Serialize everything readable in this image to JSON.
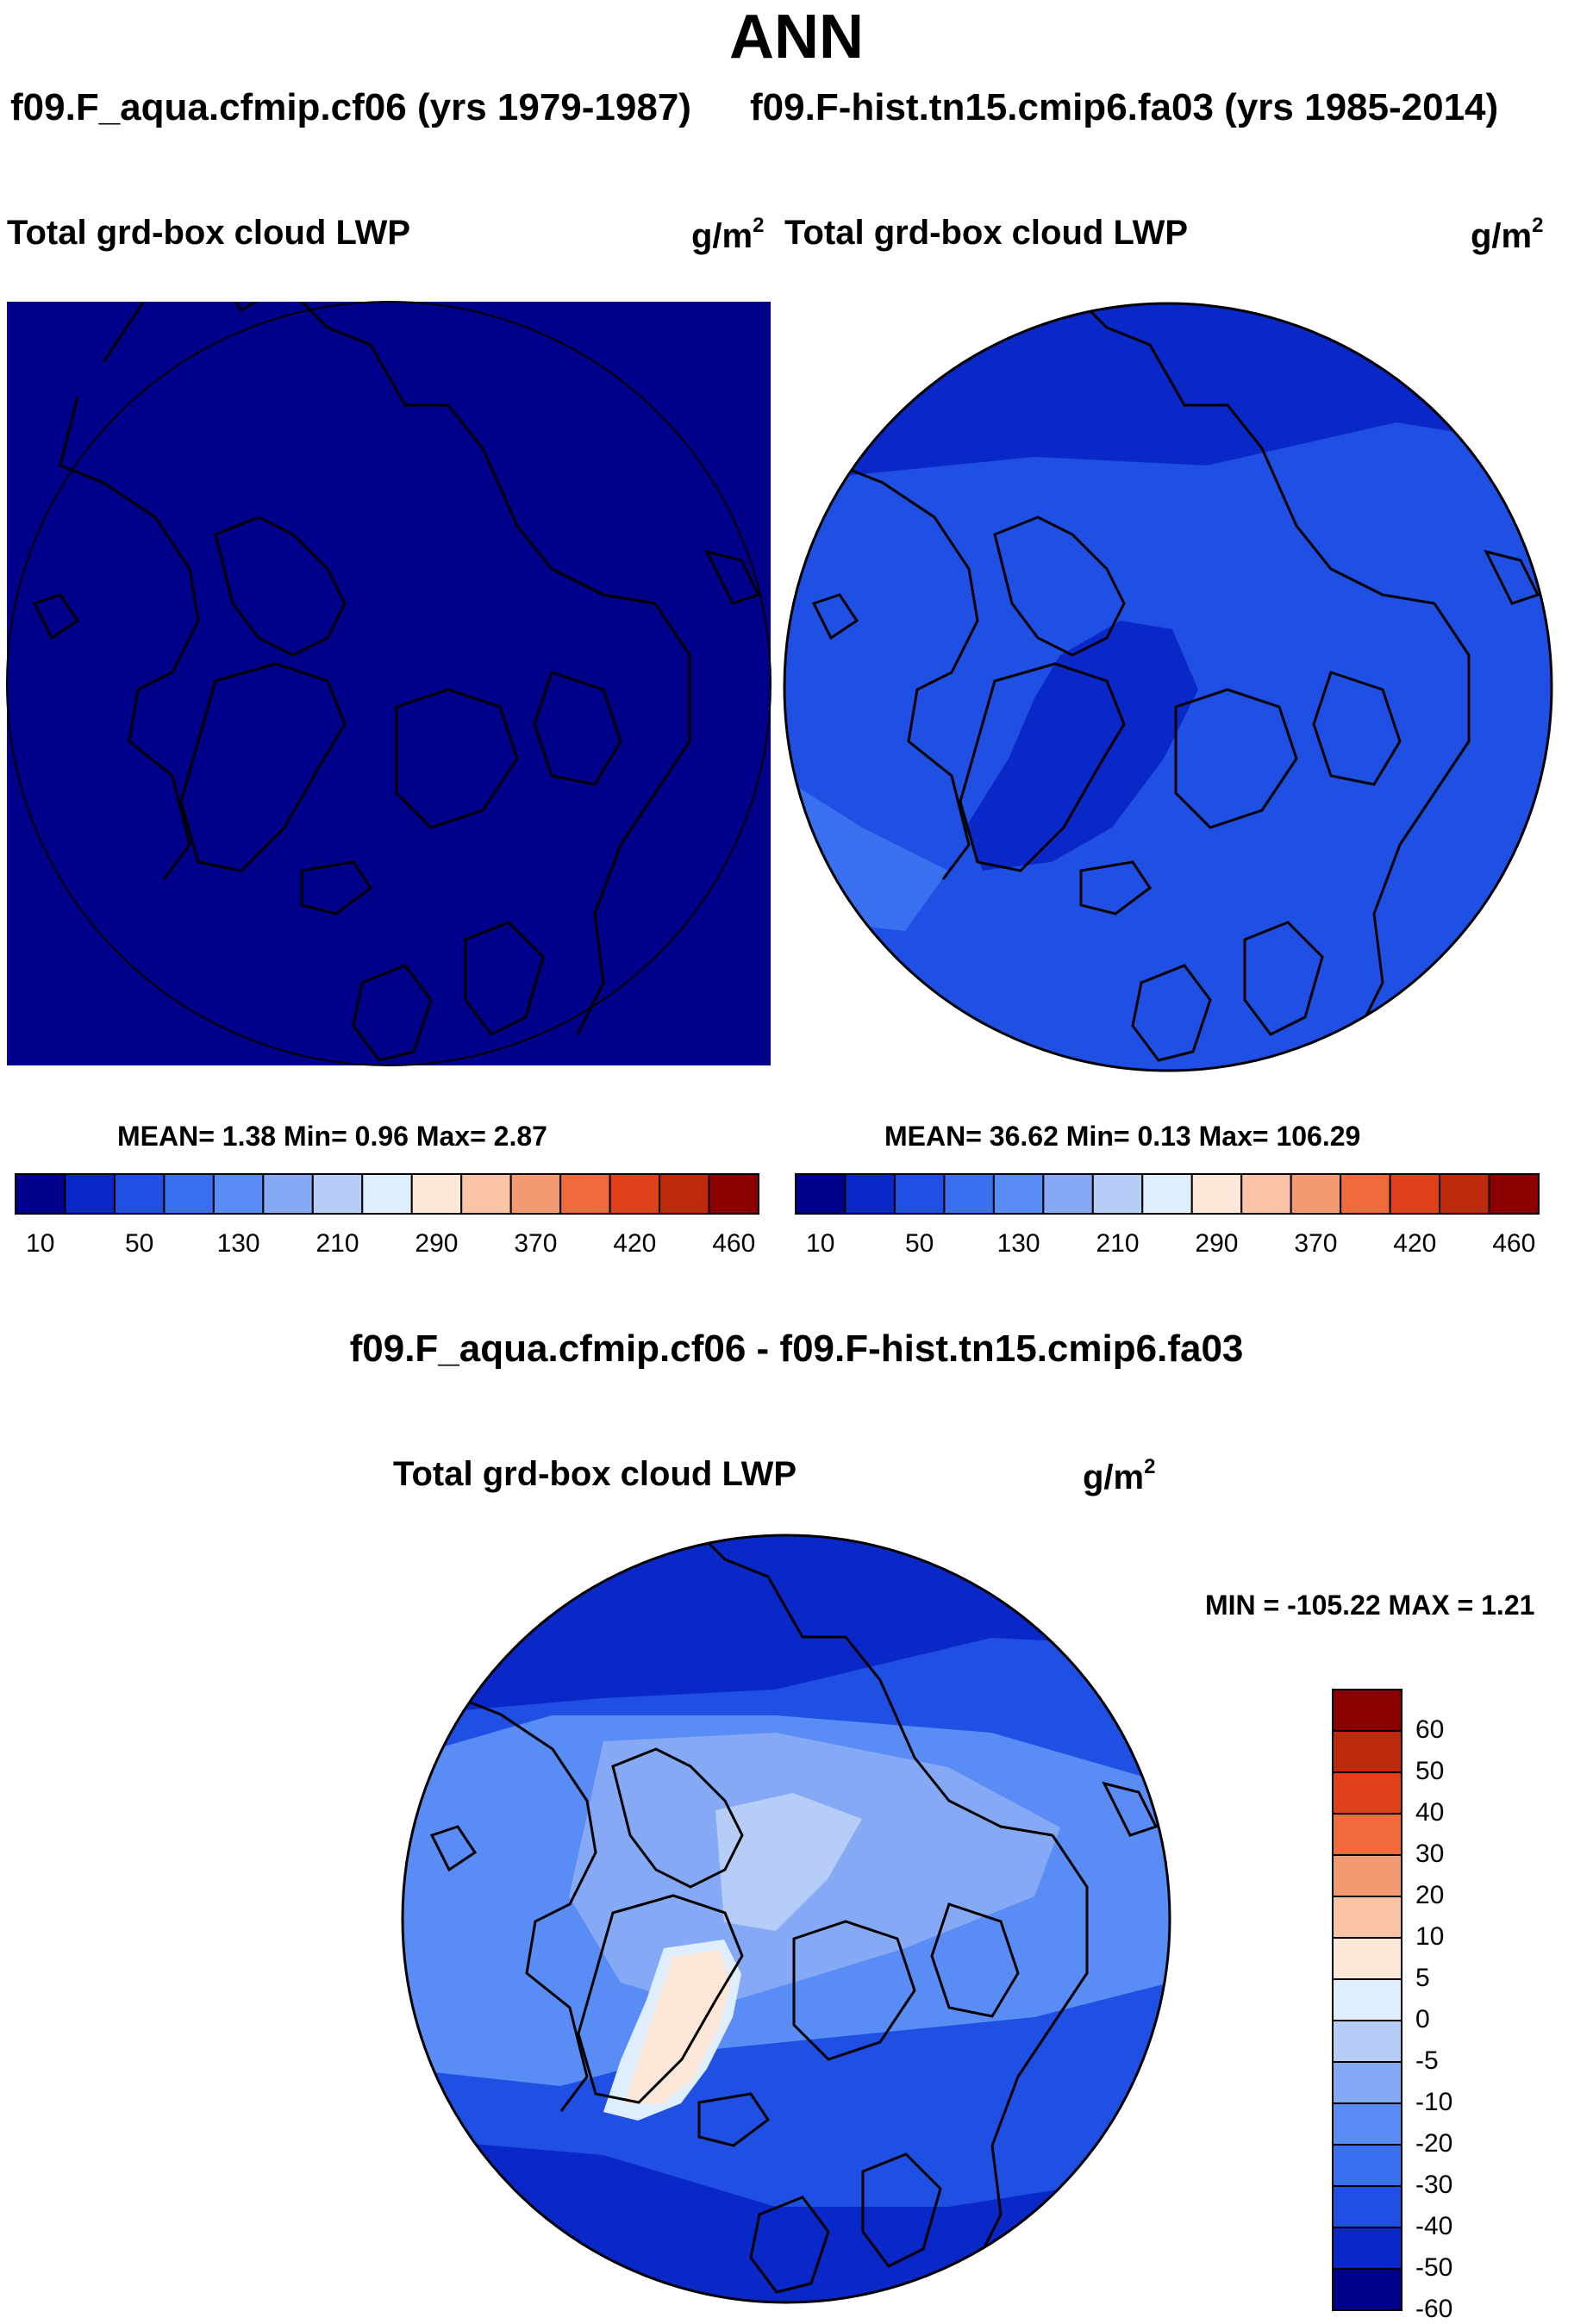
{
  "title": "ANN",
  "panels": {
    "left": {
      "case_label": "f09.F_aqua.cfmip.cf06 (yrs 1979-1987)",
      "variable": "Total grd-box cloud LWP",
      "units_base": "g/m",
      "units_exp": "2",
      "stats": "MEAN=   1.38  Min=   0.96  Max=   2.87",
      "fill_color": "#00008b"
    },
    "right": {
      "case_label": "f09.F-hist.tn15.cmip6.fa03 (yrs 1985-2014)",
      "variable": "Total grd-box cloud LWP",
      "units_base": "g/m",
      "units_exp": "2",
      "stats": "MEAN=  36.62  Min=   0.13  Max= 106.29",
      "fill_color": "#1f50e3"
    },
    "diff": {
      "case_label": "f09.F_aqua.cfmip.cf06 - f09.F-hist.tn15.cmip6.fa03",
      "variable": "Total grd-box cloud LWP",
      "units_base": "g/m",
      "units_exp": "2",
      "stats": "MIN = -105.22 MAX =   1.21"
    }
  },
  "colorbar_main": {
    "colors": [
      "#00008b",
      "#0a28c8",
      "#1f50e3",
      "#3a6ff0",
      "#5a8cf5",
      "#86a9f5",
      "#b5cdf7",
      "#dfeefc",
      "#fde7d8",
      "#fbc4a6",
      "#f49a72",
      "#ef6b3c",
      "#e0401a",
      "#c02a0c",
      "#8b0000"
    ],
    "tick_labels": [
      "10",
      "50",
      "130",
      "210",
      "290",
      "370",
      "420",
      "460"
    ]
  },
  "colorbar_diff": {
    "colors": [
      "#8b0000",
      "#c02a0c",
      "#e0401a",
      "#ef6b3c",
      "#f49a72",
      "#fbc4a6",
      "#fde7d8",
      "#dfeefc",
      "#b5cdf7",
      "#86a9f5",
      "#5a8cf5",
      "#3a6ff0",
      "#1f50e3",
      "#0a28c8",
      "#00008b"
    ],
    "tick_labels": [
      "60",
      "50",
      "40",
      "30",
      "20",
      "10",
      "5",
      "0",
      "-5",
      "-10",
      "-20",
      "-30",
      "-40",
      "-50",
      "-60"
    ]
  },
  "chart_data": [
    {
      "type": "heatmap",
      "title": "f09.F_aqua.cfmip.cf06 (yrs 1979-1987)",
      "variable": "Total grd-box cloud LWP",
      "units": "g/m2",
      "projection": "polar stereographic (north)",
      "levels": [
        10,
        50,
        130,
        210,
        290,
        370,
        420,
        460
      ],
      "mean": 1.38,
      "min": 0.96,
      "max": 2.87
    },
    {
      "type": "heatmap",
      "title": "f09.F-hist.tn15.cmip6.fa03 (yrs 1985-2014)",
      "variable": "Total grd-box cloud LWP",
      "units": "g/m2",
      "projection": "polar stereographic (north)",
      "levels": [
        10,
        50,
        130,
        210,
        290,
        370,
        420,
        460
      ],
      "mean": 36.62,
      "min": 0.13,
      "max": 106.29
    },
    {
      "type": "heatmap",
      "title": "f09.F_aqua.cfmip.cf06 - f09.F-hist.tn15.cmip6.fa03",
      "variable": "Total grd-box cloud LWP",
      "units": "g/m2",
      "projection": "polar stereographic (north)",
      "levels": [
        -60,
        -50,
        -40,
        -30,
        -20,
        -10,
        -5,
        0,
        5,
        10,
        20,
        30,
        40,
        50,
        60
      ],
      "min": -105.22,
      "max": 1.21
    }
  ]
}
